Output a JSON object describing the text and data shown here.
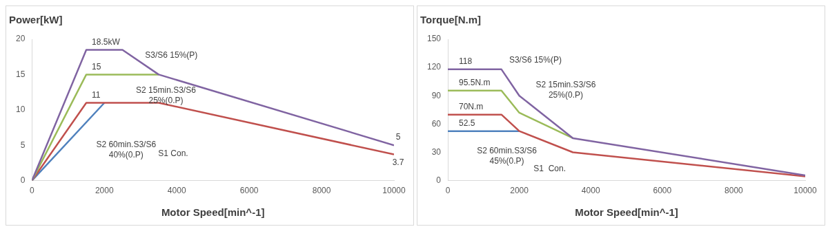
{
  "chart_data": [
    {
      "type": "line",
      "title": "Power[kW]",
      "xlabel": "Motor Speed[min^-1]",
      "xlim": [
        0,
        10000
      ],
      "xticks": [
        0,
        2000,
        4000,
        6000,
        8000,
        10000
      ],
      "ylim": [
        0,
        20
      ],
      "yticks": [
        0,
        5,
        10,
        15,
        20
      ],
      "grid": false,
      "legend": false,
      "marker": "none",
      "line_style": "solid",
      "series": [
        {
          "color": "#8064a2",
          "x": [
            0,
            1500,
            2500,
            3500,
            10000
          ],
          "values": [
            0,
            18.5,
            18.5,
            15,
            5
          ],
          "value_labels": [
            null,
            "18.5kW",
            null,
            null,
            "5"
          ]
        },
        {
          "color": "#9bbb59",
          "x": [
            0,
            1500,
            3500
          ],
          "values": [
            0,
            15,
            15
          ],
          "value_labels": [
            null,
            "15",
            null
          ]
        },
        {
          "color": "#c0504d",
          "x": [
            0,
            1500,
            3500,
            10000
          ],
          "values": [
            0,
            11,
            11,
            3.7
          ],
          "value_labels": [
            null,
            "11",
            null,
            "3.7"
          ]
        },
        {
          "color": "#4f81bd",
          "x": [
            0,
            2000
          ],
          "values": [
            0,
            11
          ]
        }
      ],
      "annotations": [
        "S3/S6 15%(P)",
        "S2 15min.S3/S6\n25%(0.P)",
        "S2 60min.S3/S6\n40%(0.P)",
        "S1 Con."
      ]
    },
    {
      "type": "line",
      "title": "Torque[N.m]",
      "xlabel": "Motor Speed[min^-1]",
      "xlim": [
        0,
        10000
      ],
      "xticks": [
        0,
        2000,
        4000,
        6000,
        8000,
        10000
      ],
      "ylim": [
        0,
        150
      ],
      "yticks": [
        0,
        30,
        60,
        90,
        120,
        150
      ],
      "grid": false,
      "legend": false,
      "marker": "none",
      "line_style": "solid",
      "series": [
        {
          "color": "#8064a2",
          "x": [
            0,
            1500,
            2000,
            3500,
            10000
          ],
          "values": [
            118,
            118,
            90,
            45,
            5.5
          ],
          "value_labels": [
            "118",
            null,
            null,
            null,
            null
          ]
        },
        {
          "color": "#9bbb59",
          "x": [
            0,
            1500,
            2000,
            3500
          ],
          "values": [
            95.5,
            95.5,
            72,
            45
          ],
          "value_labels": [
            "95.5N.m",
            null,
            null,
            null
          ]
        },
        {
          "color": "#c0504d",
          "x": [
            0,
            1500,
            2000,
            3500,
            10000
          ],
          "values": [
            70,
            70,
            52.5,
            30,
            4.5
          ],
          "value_labels": [
            "70N.m",
            null,
            null,
            null,
            null
          ]
        },
        {
          "color": "#4f81bd",
          "x": [
            0,
            2000
          ],
          "values": [
            52.5,
            52.5
          ],
          "value_labels": [
            "52.5",
            null
          ]
        }
      ],
      "annotations": [
        "S3/S6 15%(P)",
        "S2 15min.S3/S6\n25%(0.P)",
        "S2 60min.S3/S6\n45%(0.P)",
        "S1  Con."
      ]
    }
  ]
}
